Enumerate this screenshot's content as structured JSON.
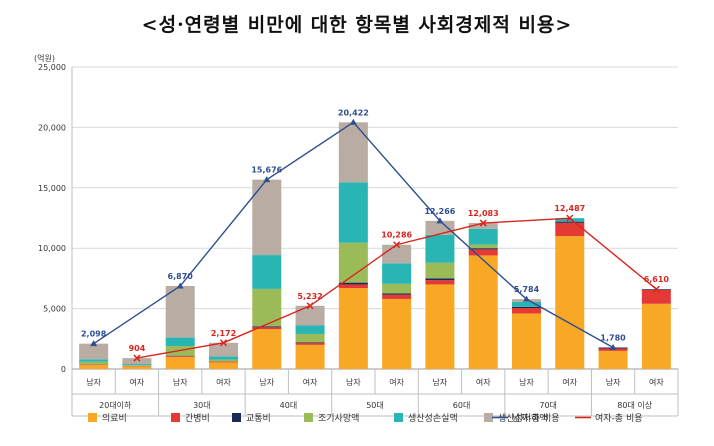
{
  "page_title": "<성·연령별 비만에 대한 항목별 사회경제적 비용>",
  "chart_data": {
    "type": "bar",
    "title": "<성·연령별 비만에 대한 항목별 사회경제적 비용>",
    "ylabel": "(억원)",
    "ylim": [
      0,
      25000
    ],
    "yticks": [
      0,
      5000,
      10000,
      15000,
      20000,
      25000
    ],
    "ytick_labels": [
      "0",
      "5,000",
      "10,000",
      "15,000",
      "20,000",
      "25,000"
    ],
    "grid": true,
    "legend_position": "bottom",
    "age_groups": [
      "20대이하",
      "30대",
      "40대",
      "50대",
      "60대",
      "70대",
      "80대 이상"
    ],
    "categories": [
      "남자",
      "여자",
      "남자",
      "여자",
      "남자",
      "여자",
      "남자",
      "여자",
      "남자",
      "여자",
      "남자",
      "여자",
      "남자",
      "여자"
    ],
    "series": [
      {
        "name": "의료비",
        "color": "#f9a825",
        "values": [
          350,
          220,
          1000,
          550,
          3300,
          2000,
          6700,
          5800,
          7000,
          9400,
          4600,
          11000,
          1500,
          5400
        ]
      },
      {
        "name": "간병비",
        "color": "#e53935",
        "values": [
          30,
          30,
          60,
          60,
          150,
          150,
          300,
          350,
          350,
          500,
          450,
          1100,
          200,
          1150
        ]
      },
      {
        "name": "교통비",
        "color": "#1a2a57",
        "values": [
          20,
          10,
          40,
          20,
          80,
          50,
          150,
          100,
          150,
          100,
          100,
          100,
          80,
          60
        ]
      },
      {
        "name": "조기사망액",
        "color": "#9bbb59",
        "values": [
          200,
          50,
          800,
          150,
          3100,
          700,
          3300,
          800,
          1300,
          300,
          0,
          0,
          0,
          0
        ]
      },
      {
        "name": "생산성손실액",
        "color": "#2ab5b5",
        "values": [
          200,
          100,
          700,
          250,
          2800,
          700,
          5000,
          1700,
          2300,
          1300,
          400,
          287,
          0,
          0
        ]
      },
      {
        "name": "생산성저하액",
        "color": "#b9aca3",
        "values": [
          1298,
          494,
          4270,
          1142,
          6246,
          1632,
          4972,
          1536,
          1166,
          483,
          234,
          0,
          0,
          0
        ]
      }
    ],
    "lines": [
      {
        "name": "남자-총 비용",
        "color": "#2f4f8f",
        "marker": "triangle",
        "bar_indices": [
          0,
          2,
          4,
          6,
          8,
          10,
          12
        ],
        "values": [
          2098,
          6870,
          15676,
          20422,
          12266,
          5784,
          1780
        ],
        "labels": [
          "2,098",
          "6,870",
          "15,676",
          "20,422",
          "12,266",
          "5,784",
          "1,780"
        ]
      },
      {
        "name": "여자-총 비용",
        "color": "#d7261e",
        "marker": "x",
        "bar_indices": [
          1,
          3,
          5,
          7,
          9,
          11,
          13
        ],
        "values": [
          904,
          2172,
          5232,
          10286,
          12083,
          12487,
          6610
        ],
        "labels": [
          "904",
          "2,172",
          "5,232",
          "10,286",
          "12,083",
          "12,487",
          "6,610"
        ]
      }
    ]
  }
}
